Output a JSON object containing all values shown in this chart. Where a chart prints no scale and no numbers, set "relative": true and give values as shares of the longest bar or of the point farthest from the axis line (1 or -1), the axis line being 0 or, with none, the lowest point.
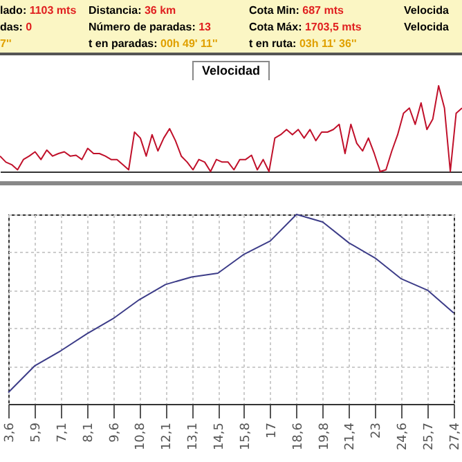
{
  "chart_data": [
    {
      "type": "other",
      "annotations": [
        "lado: 1103 mts",
        "Distancia: 36 km",
        "Cota Min: 687 mts",
        "Velocida",
        "das: 0",
        "Número de paradas: 13",
        "Cota Máx: 1703,5 mts",
        "Velocida",
        "7''",
        "t en paradas: 00h 49' 11''",
        "t en ruta: 03h 11' 36''"
      ]
    },
    {
      "type": "line",
      "title": "Velocidad",
      "relative": true,
      "categories": [
        null,
        null,
        null,
        null,
        null,
        null,
        null,
        null,
        null,
        null,
        null,
        null,
        null,
        null,
        null,
        null,
        null,
        null,
        null,
        null,
        null,
        null,
        null,
        null,
        null,
        null,
        null,
        null,
        null,
        null,
        null,
        null,
        null,
        null,
        null,
        null,
        null,
        null,
        null,
        null,
        null,
        null,
        null,
        null,
        null,
        null,
        null,
        null,
        null,
        null,
        null,
        null,
        null,
        null,
        null,
        null,
        null,
        null,
        null,
        null,
        null,
        null,
        null,
        null,
        null,
        null,
        null,
        null,
        null,
        null,
        null,
        null,
        null,
        null,
        null,
        null,
        null,
        null,
        null,
        null
      ],
      "series": [
        {
          "color": "#c0102a",
          "values": [
            0.18,
            0.11,
            0.08,
            0.02,
            0.14,
            0.18,
            0.23,
            0.14,
            0.25,
            0.18,
            0.21,
            0.23,
            0.18,
            0.19,
            0.14,
            0.27,
            0.21,
            0.21,
            0.18,
            0.14,
            0.14,
            0.08,
            0.02,
            0.46,
            0.39,
            0.18,
            0.43,
            0.24,
            0.39,
            0.5,
            0.36,
            0.18,
            0.11,
            0.02,
            0.14,
            0.11,
            0,
            0.14,
            0.11,
            0.11,
            0.02,
            0.14,
            0.14,
            0.19,
            0.02,
            0.14,
            0,
            0.39,
            0.43,
            0.49,
            0.43,
            0.49,
            0.39,
            0.49,
            0.36,
            0.46,
            0.46,
            0.49,
            0.55,
            0.21,
            0.55,
            0.33,
            0.24,
            0.39,
            0.21,
            0,
            0.02,
            0.24,
            0.43,
            0.68,
            0.74,
            0.55,
            0.8,
            0.49,
            0.61,
            1,
            0.74,
            0,
            0.68,
            0.74
          ]
        }
      ]
    },
    {
      "type": "line",
      "relative": true,
      "grid": true,
      "categories": [
        "3,6",
        "5,9",
        "7,1",
        "8,1",
        "9,6",
        "10,8",
        "12,1",
        "13,1",
        "14,5",
        "15,8",
        "17",
        "18,6",
        "19,8",
        "21,4",
        "23",
        "24,6",
        "25,7",
        "27,4"
      ],
      "series": [
        {
          "color": "#3c3c88",
          "values": [
            0.06,
            0.2,
            0.28,
            0.37,
            0.45,
            0.55,
            0.63,
            0.67,
            0.69,
            0.79,
            0.86,
            1,
            0.96,
            0.85,
            0.77,
            0.66,
            0.6,
            0.48
          ]
        }
      ]
    }
  ]
}
